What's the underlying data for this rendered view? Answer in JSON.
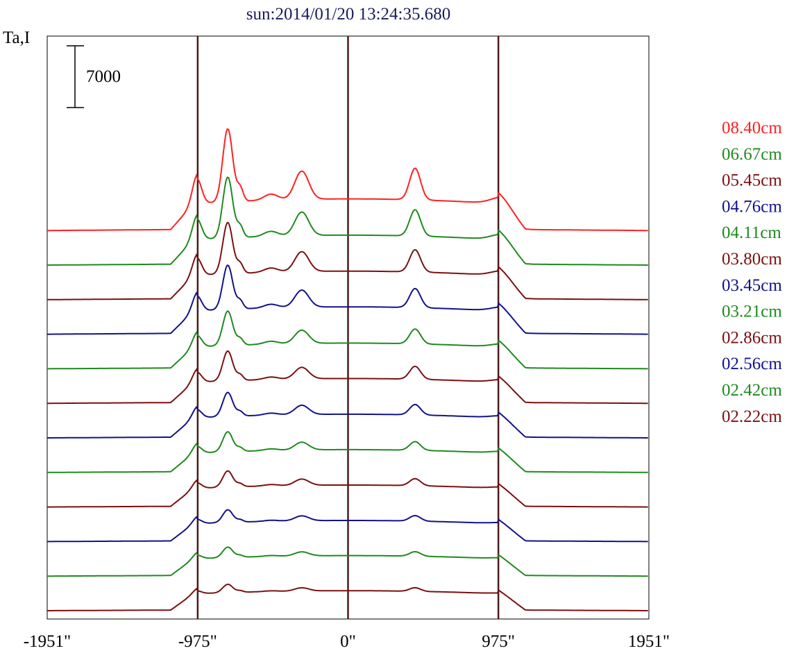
{
  "chart_data": {
    "type": "line",
    "title": "sun:2014/01/20 13:24:35.680",
    "title_color": "#1a1a5e",
    "ylabel": "Ta,I",
    "scale_bar_label": "7000",
    "x_range": [
      -1951,
      1951
    ],
    "x_ticks": [
      {
        "value": -1951,
        "label": "-1951\""
      },
      {
        "value": -975,
        "label": "-975\""
      },
      {
        "value": 0,
        "label": "0\""
      },
      {
        "value": 975,
        "label": "975\""
      },
      {
        "value": 1951,
        "label": "1951\""
      }
    ],
    "reference_lines": [
      -975,
      0,
      975
    ],
    "reference_line_color": "#4a1a1a",
    "series_offset_step": 7000,
    "series": [
      {
        "name": "08.40cm",
        "color": "#ff2020",
        "peak_scale": 1.0
      },
      {
        "name": "06.67cm",
        "color": "#1e8a1e",
        "peak_scale": 0.88
      },
      {
        "name": "05.45cm",
        "color": "#7a1010",
        "peak_scale": 0.78
      },
      {
        "name": "04.76cm",
        "color": "#12128a",
        "peak_scale": 0.7
      },
      {
        "name": "04.11cm",
        "color": "#1e8a1e",
        "peak_scale": 0.58
      },
      {
        "name": "03.80cm",
        "color": "#7a1010",
        "peak_scale": 0.52
      },
      {
        "name": "03.45cm",
        "color": "#12128a",
        "peak_scale": 0.44
      },
      {
        "name": "03.21cm",
        "color": "#1e8a1e",
        "peak_scale": 0.38
      },
      {
        "name": "02.86cm",
        "color": "#7a1010",
        "peak_scale": 0.32
      },
      {
        "name": "02.56cm",
        "color": "#12128a",
        "peak_scale": 0.26
      },
      {
        "name": "02.42cm",
        "color": "#1e8a1e",
        "peak_scale": 0.22
      },
      {
        "name": "02.22cm",
        "color": "#7a1010",
        "peak_scale": 0.18
      }
    ]
  }
}
